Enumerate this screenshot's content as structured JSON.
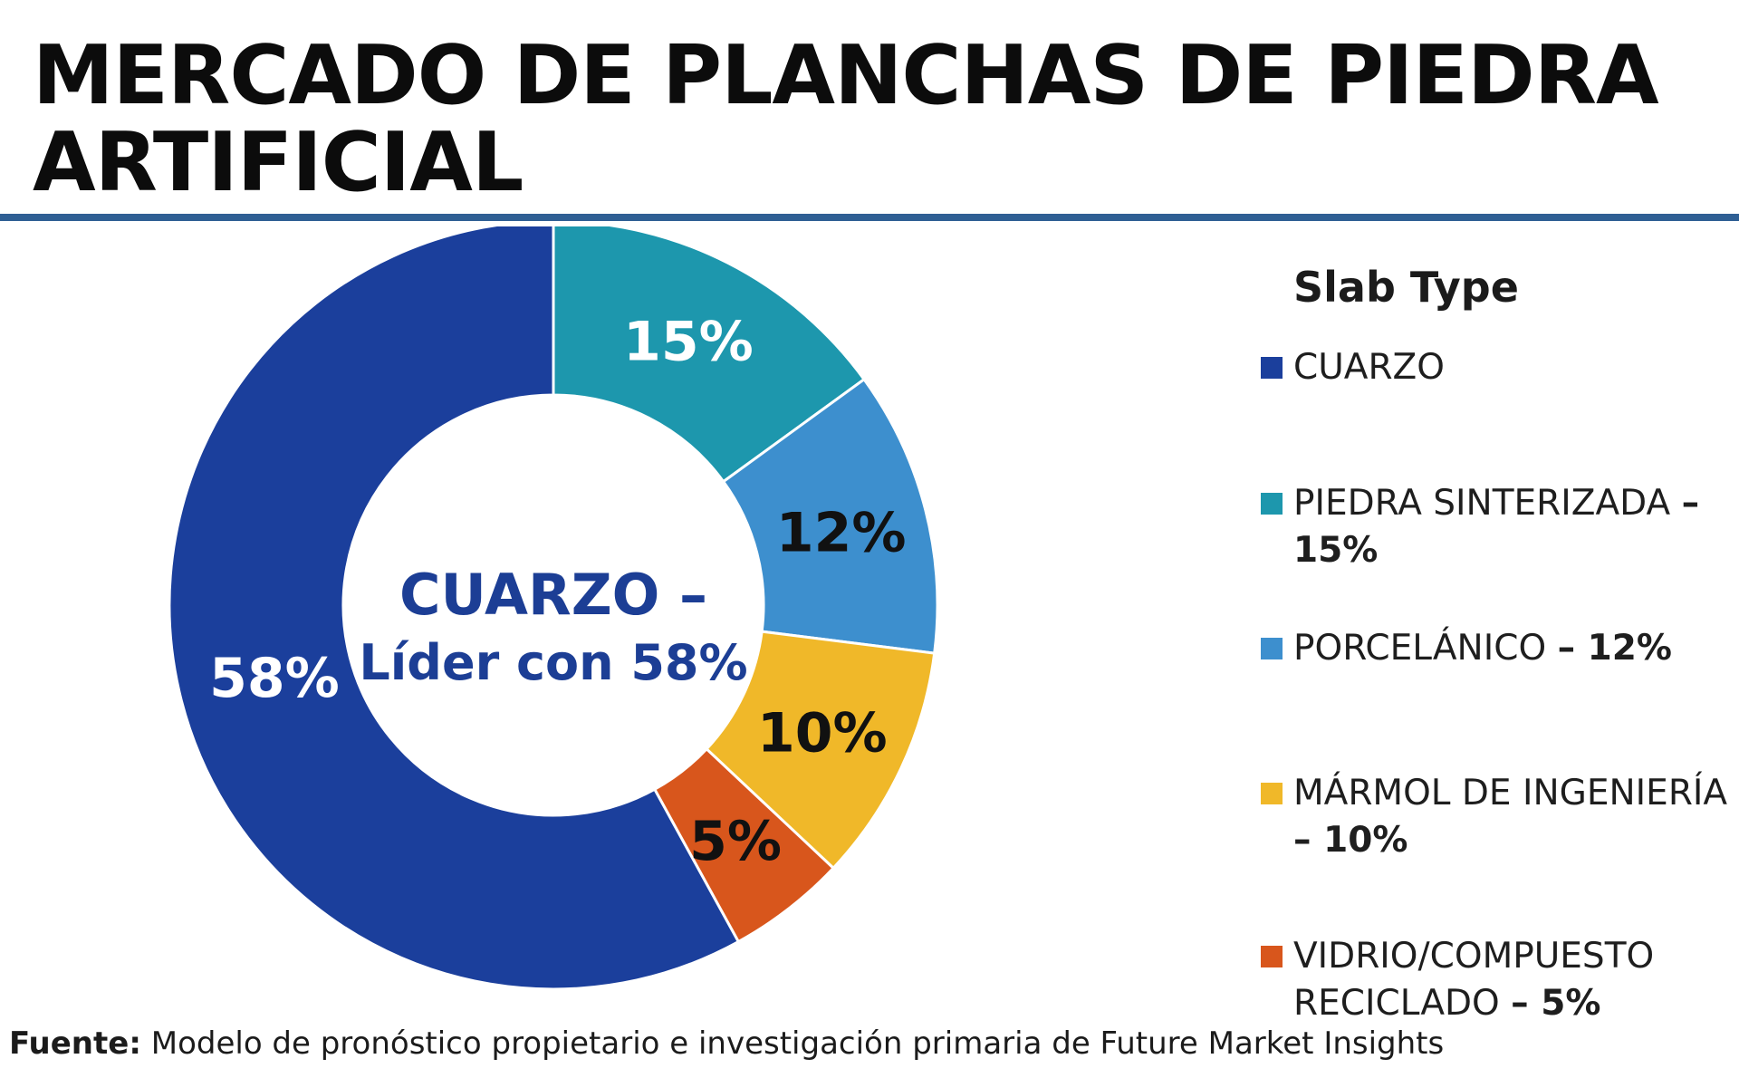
{
  "title": "MERCADO DE PLANCHAS DE PIEDRA ARTIFICIAL",
  "chart_data": {
    "type": "pie",
    "donut": true,
    "categories": [
      "CUARZO",
      "PIEDRA SINTERIZADA",
      "PORCELÁNICO",
      "MÁRMOL DE INGENIERÍA",
      "VIDRIO/COMPUESTO RECICLADO"
    ],
    "values": [
      58,
      15,
      12,
      10,
      5
    ],
    "data_labels": [
      "58%",
      "15%",
      "12%",
      "10%",
      "5%"
    ],
    "colors": [
      "#1b3f9c",
      "#1d97ad",
      "#3d8fce",
      "#f0b829",
      "#d8561c"
    ],
    "label_colors": [
      "#ffffff",
      "#ffffff",
      "#111111",
      "#111111",
      "#111111"
    ],
    "center_text": [
      "CUARZO –",
      "Líder con 58%"
    ],
    "legend_title": "Slab Type",
    "legend_placement": "right"
  },
  "legend": {
    "items": [
      {
        "label": "CUARZO",
        "suffix": ""
      },
      {
        "label": "PIEDRA SINTERIZADA",
        "suffix": "– 15%"
      },
      {
        "label": "PORCELÁNICO",
        "suffix": "– 12%"
      },
      {
        "label": "MÁRMOL DE INGENIERÍA",
        "suffix": "– 10%"
      },
      {
        "label": "VIDRIO/COMPUESTO RECICLADO",
        "suffix": "– 5%"
      }
    ]
  },
  "source": {
    "prefix": "Fuente:",
    "text": " Modelo de pronóstico propietario e investigación primaria de Future Market Insights"
  }
}
